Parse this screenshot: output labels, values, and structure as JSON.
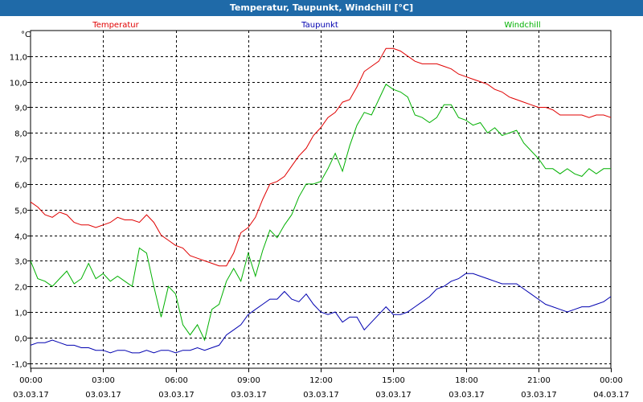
{
  "window": {
    "title": "Temperatur, Taupunkt, Windchill [°C]"
  },
  "chart_data": {
    "type": "line",
    "title": "Temperatur, Taupunkt, Windchill [°C]",
    "ylabel": "°C",
    "ylim": [
      -1.2,
      12.0
    ],
    "xlim": [
      0,
      24
    ],
    "grid": true,
    "y_ticks": [
      {
        "v": -1.0,
        "label": "-1,0"
      },
      {
        "v": 0.0,
        "label": "0,0"
      },
      {
        "v": 1.0,
        "label": "1,0"
      },
      {
        "v": 2.0,
        "label": "2,0"
      },
      {
        "v": 3.0,
        "label": "3,0"
      },
      {
        "v": 4.0,
        "label": "4,0"
      },
      {
        "v": 5.0,
        "label": "5,0"
      },
      {
        "v": 6.0,
        "label": "6,0"
      },
      {
        "v": 7.0,
        "label": "7,0"
      },
      {
        "v": 8.0,
        "label": "8,0"
      },
      {
        "v": 9.0,
        "label": "9,0"
      },
      {
        "v": 10.0,
        "label": "10,0"
      },
      {
        "v": 11.0,
        "label": "11,0"
      }
    ],
    "x_ticks": [
      {
        "v": 0,
        "time": "00:00",
        "date": "03.03.17"
      },
      {
        "v": 3,
        "time": "03:00",
        "date": "03.03.17"
      },
      {
        "v": 6,
        "time": "06:00",
        "date": "03.03.17"
      },
      {
        "v": 9,
        "time": "09:00",
        "date": "03.03.17"
      },
      {
        "v": 12,
        "time": "12:00",
        "date": "03.03.17"
      },
      {
        "v": 15,
        "time": "15:00",
        "date": "03.03.17"
      },
      {
        "v": 18,
        "time": "18:00",
        "date": "03.03.17"
      },
      {
        "v": 21,
        "time": "21:00",
        "date": "03.03.17"
      },
      {
        "v": 24,
        "time": "00:00",
        "date": "04.03.17"
      }
    ],
    "series": [
      {
        "name": "Temperatur",
        "color": "#e00000",
        "legend_pos": "left",
        "x": [
          0,
          0.3,
          0.6,
          0.9,
          1.2,
          1.5,
          1.8,
          2.1,
          2.4,
          2.7,
          3.0,
          3.3,
          3.6,
          3.9,
          4.2,
          4.5,
          4.8,
          5.1,
          5.4,
          5.7,
          6.0,
          6.3,
          6.6,
          6.9,
          7.2,
          7.5,
          7.8,
          8.1,
          8.4,
          8.7,
          9.0,
          9.3,
          9.6,
          9.9,
          10.2,
          10.5,
          10.8,
          11.1,
          11.4,
          11.7,
          12.0,
          12.3,
          12.6,
          12.9,
          13.2,
          13.5,
          13.8,
          14.1,
          14.4,
          14.7,
          15.0,
          15.3,
          15.6,
          15.9,
          16.2,
          16.5,
          16.8,
          17.1,
          17.4,
          17.7,
          18.0,
          18.3,
          18.6,
          18.9,
          19.2,
          19.5,
          19.8,
          20.1,
          20.4,
          20.7,
          21.0,
          21.3,
          21.6,
          21.9,
          22.2,
          22.5,
          22.8,
          23.1,
          23.4,
          23.7,
          24.0
        ],
        "values": [
          5.3,
          5.1,
          4.8,
          4.7,
          4.9,
          4.8,
          4.5,
          4.4,
          4.4,
          4.3,
          4.4,
          4.5,
          4.7,
          4.6,
          4.6,
          4.5,
          4.8,
          4.5,
          4.0,
          3.8,
          3.6,
          3.5,
          3.2,
          3.1,
          3.0,
          2.9,
          2.8,
          2.8,
          3.3,
          4.1,
          4.3,
          4.7,
          5.4,
          6.0,
          6.1,
          6.3,
          6.7,
          7.1,
          7.4,
          7.9,
          8.2,
          8.6,
          8.8,
          9.2,
          9.3,
          9.8,
          10.4,
          10.6,
          10.8,
          11.3,
          11.3,
          11.2,
          11.0,
          10.8,
          10.7,
          10.7,
          10.7,
          10.6,
          10.5,
          10.3,
          10.2,
          10.1,
          10.0,
          9.9,
          9.7,
          9.6,
          9.4,
          9.3,
          9.2,
          9.1,
          9.0,
          9.0,
          8.9,
          8.7,
          8.7,
          8.7,
          8.7,
          8.6,
          8.7,
          8.7,
          8.6
        ]
      },
      {
        "name": "Taupunkt",
        "color": "#0000b0",
        "legend_pos": "center",
        "x": [
          0,
          0.3,
          0.6,
          0.9,
          1.2,
          1.5,
          1.8,
          2.1,
          2.4,
          2.7,
          3.0,
          3.3,
          3.6,
          3.9,
          4.2,
          4.5,
          4.8,
          5.1,
          5.4,
          5.7,
          6.0,
          6.3,
          6.6,
          6.9,
          7.2,
          7.5,
          7.8,
          8.1,
          8.4,
          8.7,
          9.0,
          9.3,
          9.6,
          9.9,
          10.2,
          10.5,
          10.8,
          11.1,
          11.4,
          11.7,
          12.0,
          12.3,
          12.6,
          12.9,
          13.2,
          13.5,
          13.8,
          14.1,
          14.4,
          14.7,
          15.0,
          15.3,
          15.6,
          15.9,
          16.2,
          16.5,
          16.8,
          17.1,
          17.4,
          17.7,
          18.0,
          18.3,
          18.6,
          18.9,
          19.2,
          19.5,
          19.8,
          20.1,
          20.4,
          20.7,
          21.0,
          21.3,
          21.6,
          21.9,
          22.2,
          22.5,
          22.8,
          23.1,
          23.4,
          23.7,
          24.0
        ],
        "values": [
          -0.3,
          -0.2,
          -0.2,
          -0.1,
          -0.2,
          -0.3,
          -0.3,
          -0.4,
          -0.4,
          -0.5,
          -0.5,
          -0.6,
          -0.5,
          -0.5,
          -0.6,
          -0.6,
          -0.5,
          -0.6,
          -0.5,
          -0.5,
          -0.6,
          -0.5,
          -0.5,
          -0.4,
          -0.5,
          -0.4,
          -0.3,
          0.1,
          0.3,
          0.5,
          0.9,
          1.1,
          1.3,
          1.5,
          1.5,
          1.8,
          1.5,
          1.4,
          1.7,
          1.3,
          1.0,
          0.9,
          1.0,
          0.6,
          0.8,
          0.8,
          0.3,
          0.6,
          0.9,
          1.2,
          0.9,
          0.9,
          1.0,
          1.2,
          1.4,
          1.6,
          1.9,
          2.0,
          2.2,
          2.3,
          2.5,
          2.5,
          2.4,
          2.3,
          2.2,
          2.1,
          2.1,
          2.1,
          1.9,
          1.7,
          1.5,
          1.3,
          1.2,
          1.1,
          1.0,
          1.1,
          1.2,
          1.2,
          1.3,
          1.4,
          1.6
        ]
      },
      {
        "name": "Windchill",
        "color": "#00b000",
        "legend_pos": "right",
        "x": [
          0,
          0.3,
          0.6,
          0.9,
          1.2,
          1.5,
          1.8,
          2.1,
          2.4,
          2.7,
          3.0,
          3.3,
          3.6,
          3.9,
          4.2,
          4.5,
          4.8,
          5.1,
          5.4,
          5.7,
          6.0,
          6.3,
          6.6,
          6.9,
          7.2,
          7.5,
          7.8,
          8.1,
          8.4,
          8.7,
          9.0,
          9.3,
          9.6,
          9.9,
          10.2,
          10.5,
          10.8,
          11.1,
          11.4,
          11.7,
          12.0,
          12.3,
          12.6,
          12.9,
          13.2,
          13.5,
          13.8,
          14.1,
          14.4,
          14.7,
          15.0,
          15.3,
          15.6,
          15.9,
          16.2,
          16.5,
          16.8,
          17.1,
          17.4,
          17.7,
          18.0,
          18.3,
          18.6,
          18.9,
          19.2,
          19.5,
          19.8,
          20.1,
          20.4,
          20.7,
          21.0,
          21.3,
          21.6,
          21.9,
          22.2,
          22.5,
          22.8,
          23.1,
          23.4,
          23.7,
          24.0
        ],
        "values": [
          3.0,
          2.3,
          2.2,
          2.0,
          2.3,
          2.6,
          2.1,
          2.3,
          2.9,
          2.3,
          2.5,
          2.2,
          2.4,
          2.2,
          2.0,
          3.5,
          3.3,
          2.0,
          0.8,
          2.0,
          1.7,
          0.5,
          0.1,
          0.5,
          -0.1,
          1.1,
          1.3,
          2.2,
          2.7,
          2.2,
          3.3,
          2.4,
          3.4,
          4.2,
          3.9,
          4.4,
          4.8,
          5.5,
          6.0,
          6.0,
          6.1,
          6.6,
          7.2,
          6.5,
          7.5,
          8.3,
          8.8,
          8.7,
          9.3,
          9.9,
          9.7,
          9.6,
          9.4,
          8.7,
          8.6,
          8.4,
          8.6,
          9.1,
          9.1,
          8.6,
          8.5,
          8.3,
          8.4,
          8.0,
          8.2,
          7.9,
          8.0,
          8.1,
          7.6,
          7.3,
          7.0,
          6.6,
          6.6,
          6.4,
          6.6,
          6.4,
          6.3,
          6.6,
          6.4,
          6.6,
          6.6
        ]
      }
    ]
  }
}
